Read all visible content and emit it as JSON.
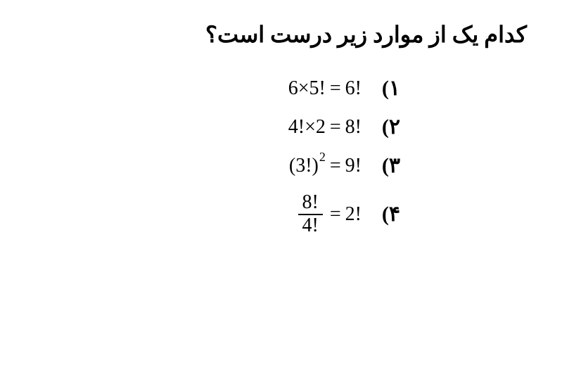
{
  "question": {
    "title": "کدام یک از موارد زیر درست است؟",
    "title_fontsize": 32,
    "title_fontweight": 900,
    "title_color": "#000000"
  },
  "options": [
    {
      "number": "۱)",
      "expression": "6×5! = 6!",
      "parts": {
        "lhs": "6×5!",
        "eq": "=",
        "rhs": "6!"
      }
    },
    {
      "number": "۲)",
      "expression": "4!×2 = 8!",
      "parts": {
        "lhs": "4!×2",
        "eq": "=",
        "rhs": "8!"
      }
    },
    {
      "number": "۳)",
      "expression": "(3!)² = 9!",
      "parts": {
        "lhs_base": "(3!)",
        "lhs_exp": "2",
        "eq": "=",
        "rhs": "9!"
      }
    },
    {
      "number": "۴)",
      "expression": "8!/4! = 2!",
      "parts": {
        "num": "8!",
        "den": "4!",
        "eq": "=",
        "rhs": "2!"
      }
    }
  ],
  "styling": {
    "background_color": "#ffffff",
    "text_color": "#000000",
    "math_fontsize": 28,
    "option_number_fontsize": 30,
    "option_number_fontweight": 900,
    "superscript_fontsize": 18,
    "fraction_border_color": "#000000",
    "fraction_border_width": 2,
    "font_family_math": "Times New Roman",
    "font_family_text": "Tahoma",
    "direction": "rtl",
    "option_gap": 20,
    "options_padding_right": 180
  }
}
